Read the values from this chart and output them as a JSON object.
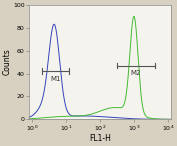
{
  "title": "",
  "xlabel": "FL1-H",
  "ylabel": "Counts",
  "xlim_log": [
    -0.1,
    4.1
  ],
  "ylim": [
    0,
    100
  ],
  "yticks": [
    0,
    20,
    40,
    60,
    80,
    100
  ],
  "xticks_log": [
    0,
    1,
    2,
    3,
    4
  ],
  "xtick_labels": [
    "10⁰",
    "10¹",
    "10²",
    "10³",
    "10⁴"
  ],
  "background_color": "#d8d0c0",
  "plot_bg_color": "#f5f3ee",
  "blue_peak_log_mean": 0.65,
  "blue_peak_log_std": 0.16,
  "blue_peak_height": 83,
  "green_peak_log_mean": 3.0,
  "green_peak_log_std": 0.12,
  "green_peak_height": 90,
  "blue_color": "#3344bb",
  "green_color": "#44bb33",
  "m1_x1_log": 0.28,
  "m1_x2_log": 1.08,
  "m1_y": 42,
  "m1_label": "M1",
  "m2_x1_log": 2.5,
  "m2_x2_log": 3.62,
  "m2_y": 47,
  "m2_label": "M2",
  "annotation_fontsize": 5,
  "axis_fontsize": 5.5,
  "tick_fontsize": 4.5
}
